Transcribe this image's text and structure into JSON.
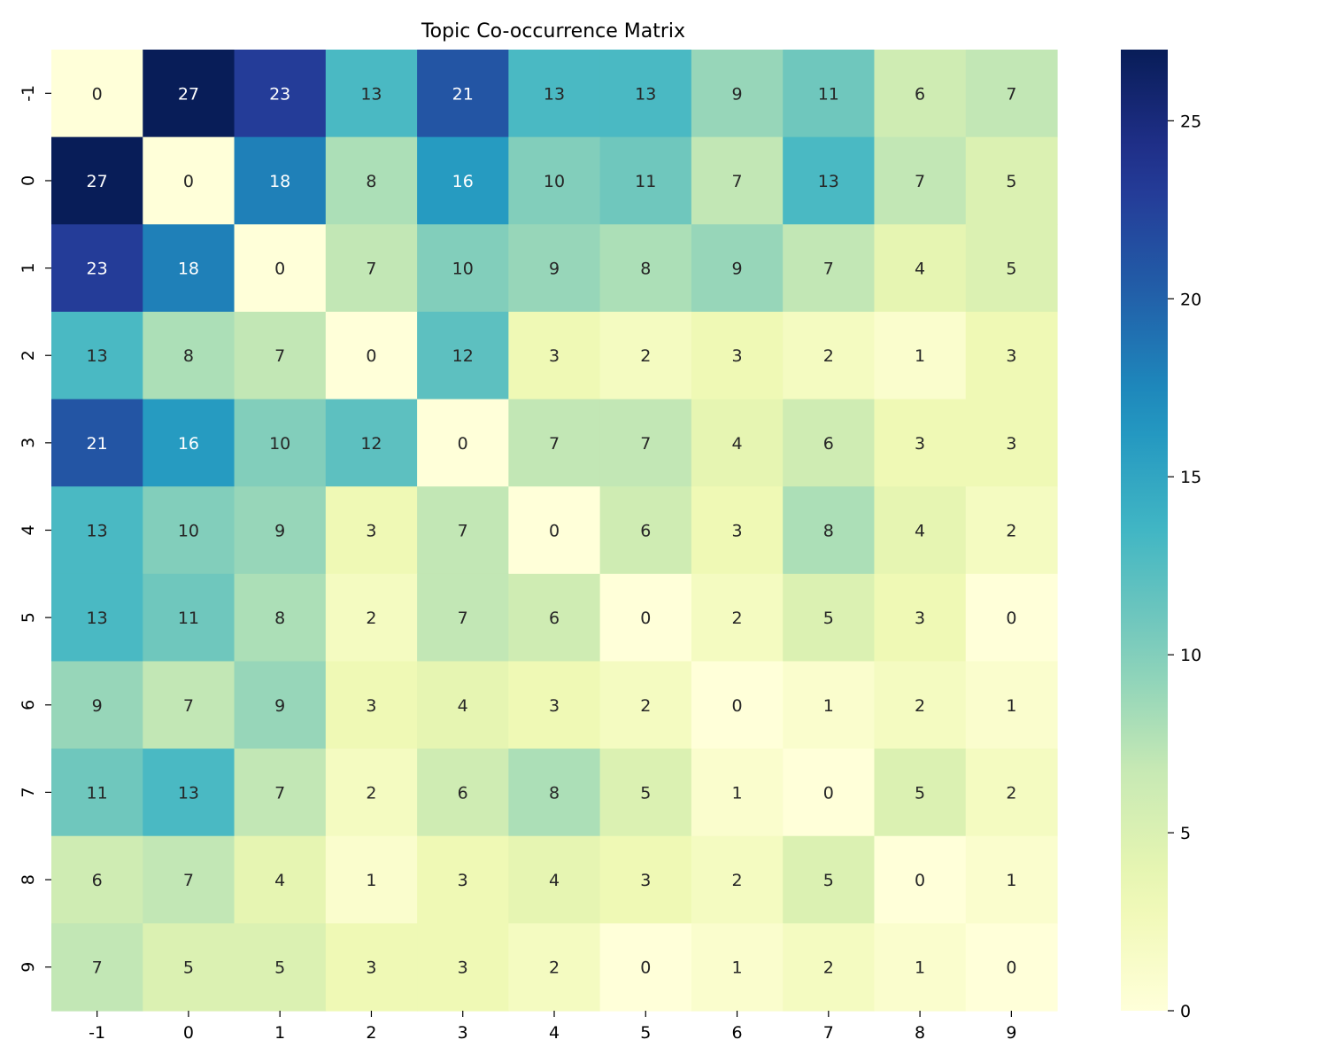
{
  "chart_data": {
    "type": "heatmap",
    "title": "Topic Co-occurrence Matrix",
    "xlabel": "",
    "ylabel": "",
    "x_labels": [
      "-1",
      "0",
      "1",
      "2",
      "3",
      "4",
      "5",
      "6",
      "7",
      "8",
      "9"
    ],
    "y_labels": [
      "-1",
      "0",
      "1",
      "2",
      "3",
      "4",
      "5",
      "6",
      "7",
      "8",
      "9"
    ],
    "values": [
      [
        0,
        27,
        23,
        13,
        21,
        13,
        13,
        9,
        11,
        6,
        7
      ],
      [
        27,
        0,
        18,
        8,
        16,
        10,
        11,
        7,
        13,
        7,
        5
      ],
      [
        23,
        18,
        0,
        7,
        10,
        9,
        8,
        9,
        7,
        4,
        5
      ],
      [
        13,
        8,
        7,
        0,
        12,
        3,
        2,
        3,
        2,
        1,
        3
      ],
      [
        21,
        16,
        10,
        12,
        0,
        7,
        7,
        4,
        6,
        3,
        3
      ],
      [
        13,
        10,
        9,
        3,
        7,
        0,
        6,
        3,
        8,
        4,
        2
      ],
      [
        13,
        11,
        8,
        2,
        7,
        6,
        0,
        2,
        5,
        3,
        0
      ],
      [
        9,
        7,
        9,
        3,
        4,
        3,
        2,
        0,
        1,
        2,
        1
      ],
      [
        11,
        13,
        7,
        2,
        6,
        8,
        5,
        1,
        0,
        5,
        2
      ],
      [
        6,
        7,
        4,
        1,
        3,
        4,
        3,
        2,
        5,
        0,
        1
      ],
      [
        7,
        5,
        5,
        3,
        3,
        2,
        0,
        1,
        2,
        1,
        0
      ]
    ],
    "colormap": "YlGnBu",
    "vmin": 0,
    "vmax": 27,
    "colorbar_ticks": [
      0,
      5,
      10,
      15,
      20,
      25
    ],
    "annotate": true,
    "grid": false
  }
}
